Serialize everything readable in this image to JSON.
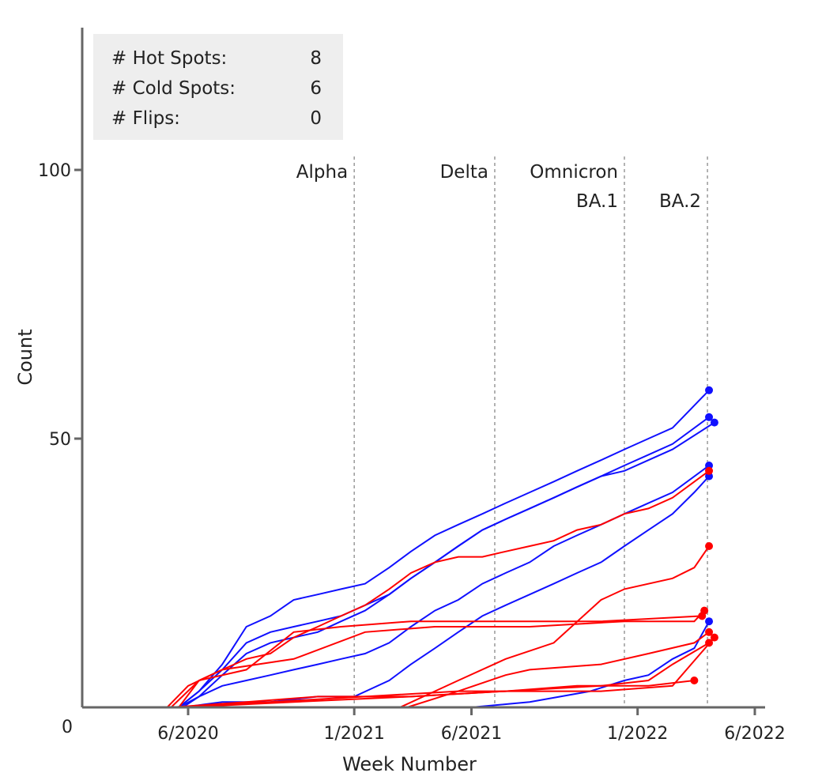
{
  "stats": [
    {
      "label": "# Hot Spots:",
      "value": "8"
    },
    {
      "label": "# Cold Spots:",
      "value": "6"
    },
    {
      "label": "# Flips:",
      "value": "0"
    }
  ],
  "colors": {
    "hot": "#ff0000",
    "cold": "#1010ff",
    "axis": "#666666",
    "stats_bg": "#eeeeee",
    "era_line": "#999999"
  },
  "chart_data": {
    "type": "line",
    "xlabel": "Week Number",
    "ylabel": "Count",
    "xlim": [
      "2020-04-15",
      "2022-06-01"
    ],
    "ylim": [
      0,
      100
    ],
    "x_ticks": [
      {
        "x": "2020-06-01",
        "label": "6/2020"
      },
      {
        "x": "2021-01-01",
        "label": "1/2021"
      },
      {
        "x": "2021-06-01",
        "label": "6/2021"
      },
      {
        "x": "2022-01-01",
        "label": "1/2022"
      },
      {
        "x": "2022-06-01",
        "label": "6/2022"
      }
    ],
    "y_ticks": [
      {
        "y": 0,
        "label": "0"
      },
      {
        "y": 50,
        "label": "50"
      },
      {
        "y": 100,
        "label": "100"
      }
    ],
    "eras": [
      {
        "x": "2021-01-01",
        "label": "Alpha",
        "row": 0
      },
      {
        "x": "2021-07-01",
        "label": "Delta",
        "row": 0
      },
      {
        "x": "2021-12-15",
        "label": "Omnicron",
        "row": 0
      },
      {
        "x": "2021-12-15",
        "label": "BA.1",
        "row": 1
      },
      {
        "x": "2022-04-01",
        "label": "BA.2",
        "row": 1
      }
    ],
    "series": [
      {
        "group": "cold",
        "points": [
          [
            "2020-05-20",
            0
          ],
          [
            "2020-06-15",
            3
          ],
          [
            "2020-07-15",
            8
          ],
          [
            "2020-08-15",
            15
          ],
          [
            "2020-09-15",
            17
          ],
          [
            "2020-10-15",
            20
          ],
          [
            "2020-11-15",
            21
          ],
          [
            "2020-12-15",
            22
          ],
          [
            "2021-01-15",
            23
          ],
          [
            "2021-02-15",
            26
          ],
          [
            "2021-03-15",
            29
          ],
          [
            "2021-04-15",
            32
          ],
          [
            "2021-05-15",
            34
          ],
          [
            "2021-06-15",
            36
          ],
          [
            "2021-07-15",
            38
          ],
          [
            "2021-08-15",
            40
          ],
          [
            "2021-09-15",
            42
          ],
          [
            "2021-10-15",
            44
          ],
          [
            "2021-11-15",
            46
          ],
          [
            "2021-12-15",
            48
          ],
          [
            "2022-01-15",
            50
          ],
          [
            "2022-02-15",
            52
          ],
          [
            "2022-04-03",
            59
          ]
        ]
      },
      {
        "group": "cold",
        "points": [
          [
            "2020-05-20",
            0
          ],
          [
            "2020-06-15",
            3
          ],
          [
            "2020-07-15",
            7
          ],
          [
            "2020-08-15",
            12
          ],
          [
            "2020-09-15",
            14
          ],
          [
            "2020-10-15",
            15
          ],
          [
            "2020-11-15",
            16
          ],
          [
            "2020-12-15",
            17
          ],
          [
            "2021-01-15",
            19
          ],
          [
            "2021-02-15",
            21
          ],
          [
            "2021-03-15",
            24
          ],
          [
            "2021-04-15",
            27
          ],
          [
            "2021-05-15",
            30
          ],
          [
            "2021-06-15",
            33
          ],
          [
            "2021-07-15",
            35
          ],
          [
            "2021-08-15",
            37
          ],
          [
            "2021-09-15",
            39
          ],
          [
            "2021-10-15",
            41
          ],
          [
            "2021-11-15",
            43
          ],
          [
            "2021-12-15",
            45
          ],
          [
            "2022-01-15",
            47
          ],
          [
            "2022-02-15",
            49
          ],
          [
            "2022-04-03",
            54
          ]
        ]
      },
      {
        "group": "cold",
        "points": [
          [
            "2020-05-25",
            0
          ],
          [
            "2020-06-15",
            2
          ],
          [
            "2020-07-15",
            6
          ],
          [
            "2020-08-15",
            10
          ],
          [
            "2020-09-15",
            12
          ],
          [
            "2020-10-15",
            13
          ],
          [
            "2020-11-15",
            14
          ],
          [
            "2020-12-15",
            16
          ],
          [
            "2021-01-15",
            18
          ],
          [
            "2021-02-15",
            21
          ],
          [
            "2021-03-15",
            24
          ],
          [
            "2021-04-15",
            27
          ],
          [
            "2021-05-15",
            30
          ],
          [
            "2021-06-15",
            33
          ],
          [
            "2021-07-15",
            35
          ],
          [
            "2021-08-15",
            37
          ],
          [
            "2021-09-15",
            39
          ],
          [
            "2021-10-15",
            41
          ],
          [
            "2021-11-15",
            43
          ],
          [
            "2021-12-15",
            44
          ],
          [
            "2022-01-15",
            46
          ],
          [
            "2022-02-15",
            48
          ],
          [
            "2022-04-10",
            53
          ]
        ]
      },
      {
        "group": "cold",
        "points": [
          [
            "2020-05-20",
            0
          ],
          [
            "2020-06-15",
            2
          ],
          [
            "2020-07-15",
            4
          ],
          [
            "2020-08-15",
            5
          ],
          [
            "2020-09-15",
            6
          ],
          [
            "2020-10-15",
            7
          ],
          [
            "2020-11-15",
            8
          ],
          [
            "2020-12-15",
            9
          ],
          [
            "2021-01-15",
            10
          ],
          [
            "2021-02-15",
            12
          ],
          [
            "2021-03-15",
            15
          ],
          [
            "2021-04-15",
            18
          ],
          [
            "2021-05-15",
            20
          ],
          [
            "2021-06-15",
            23
          ],
          [
            "2021-07-15",
            25
          ],
          [
            "2021-08-15",
            27
          ],
          [
            "2021-09-15",
            30
          ],
          [
            "2021-10-15",
            32
          ],
          [
            "2021-11-15",
            34
          ],
          [
            "2021-12-15",
            36
          ],
          [
            "2022-01-15",
            38
          ],
          [
            "2022-02-15",
            40
          ],
          [
            "2022-04-03",
            45
          ]
        ]
      },
      {
        "group": "cold",
        "points": [
          [
            "2020-05-25",
            0
          ],
          [
            "2020-07-15",
            1
          ],
          [
            "2020-09-15",
            1
          ],
          [
            "2020-11-15",
            2
          ],
          [
            "2021-01-01",
            2
          ],
          [
            "2021-02-15",
            5
          ],
          [
            "2021-03-15",
            8
          ],
          [
            "2021-04-15",
            11
          ],
          [
            "2021-05-15",
            14
          ],
          [
            "2021-06-15",
            17
          ],
          [
            "2021-07-15",
            19
          ],
          [
            "2021-08-15",
            21
          ],
          [
            "2021-09-15",
            23
          ],
          [
            "2021-10-15",
            25
          ],
          [
            "2021-11-15",
            27
          ],
          [
            "2021-12-15",
            30
          ],
          [
            "2022-01-15",
            33
          ],
          [
            "2022-02-15",
            36
          ],
          [
            "2022-03-15",
            40
          ],
          [
            "2022-04-03",
            43
          ]
        ]
      },
      {
        "group": "cold",
        "points": [
          [
            "2021-06-01",
            0
          ],
          [
            "2021-08-15",
            1
          ],
          [
            "2021-11-01",
            3
          ],
          [
            "2021-12-15",
            5
          ],
          [
            "2022-01-15",
            6
          ],
          [
            "2022-02-15",
            9
          ],
          [
            "2022-03-15",
            11
          ],
          [
            "2022-04-03",
            16
          ]
        ]
      },
      {
        "group": "hot",
        "points": [
          [
            "2020-05-05",
            0
          ],
          [
            "2020-06-01",
            4
          ],
          [
            "2020-07-15",
            7
          ],
          [
            "2020-08-15",
            9
          ],
          [
            "2020-09-15",
            10
          ],
          [
            "2020-10-15",
            13
          ],
          [
            "2020-11-15",
            15
          ],
          [
            "2020-12-15",
            17
          ],
          [
            "2021-01-15",
            19
          ],
          [
            "2021-02-15",
            22
          ],
          [
            "2021-03-15",
            25
          ],
          [
            "2021-04-15",
            27
          ],
          [
            "2021-05-15",
            28
          ],
          [
            "2021-06-15",
            28
          ],
          [
            "2021-07-15",
            29
          ],
          [
            "2021-08-15",
            30
          ],
          [
            "2021-09-15",
            31
          ],
          [
            "2021-10-15",
            33
          ],
          [
            "2021-11-15",
            34
          ],
          [
            "2021-12-15",
            36
          ],
          [
            "2022-01-15",
            37
          ],
          [
            "2022-02-15",
            39
          ],
          [
            "2022-04-03",
            44
          ]
        ]
      },
      {
        "group": "hot",
        "points": [
          [
            "2020-05-10",
            0
          ],
          [
            "2020-06-15",
            5
          ],
          [
            "2020-08-15",
            7
          ],
          [
            "2020-10-15",
            14
          ],
          [
            "2020-12-15",
            15
          ],
          [
            "2021-03-15",
            16
          ],
          [
            "2021-07-15",
            16
          ],
          [
            "2021-11-15",
            16
          ],
          [
            "2022-03-25",
            17
          ]
        ]
      },
      {
        "group": "hot",
        "points": [
          [
            "2020-05-20",
            0
          ],
          [
            "2020-06-15",
            5
          ],
          [
            "2020-07-15",
            7
          ],
          [
            "2020-10-15",
            9
          ],
          [
            "2021-01-15",
            14
          ],
          [
            "2021-04-15",
            15
          ],
          [
            "2021-08-15",
            15
          ],
          [
            "2021-12-15",
            16
          ],
          [
            "2022-03-15",
            16
          ],
          [
            "2022-03-28",
            18
          ]
        ]
      },
      {
        "group": "hot",
        "points": [
          [
            "2021-03-01",
            0
          ],
          [
            "2021-05-15",
            5
          ],
          [
            "2021-07-15",
            9
          ],
          [
            "2021-09-15",
            12
          ],
          [
            "2021-11-15",
            20
          ],
          [
            "2021-12-15",
            22
          ],
          [
            "2022-02-15",
            24
          ],
          [
            "2022-03-15",
            26
          ],
          [
            "2022-04-03",
            30
          ]
        ]
      },
      {
        "group": "hot",
        "points": [
          [
            "2021-03-10",
            0
          ],
          [
            "2021-05-15",
            3
          ],
          [
            "2021-07-15",
            6
          ],
          [
            "2021-08-15",
            7
          ],
          [
            "2021-11-15",
            8
          ],
          [
            "2022-01-15",
            10
          ],
          [
            "2022-03-15",
            12
          ],
          [
            "2022-04-03",
            14
          ]
        ]
      },
      {
        "group": "hot",
        "points": [
          [
            "2020-05-10",
            0
          ],
          [
            "2020-08-15",
            1
          ],
          [
            "2020-11-15",
            2
          ],
          [
            "2021-03-15",
            2
          ],
          [
            "2021-07-15",
            3
          ],
          [
            "2021-11-15",
            4
          ],
          [
            "2022-01-15",
            5
          ],
          [
            "2022-02-15",
            8
          ],
          [
            "2022-04-03",
            12
          ]
        ]
      },
      {
        "group": "hot",
        "points": [
          [
            "2020-05-20",
            0
          ],
          [
            "2020-09-15",
            1
          ],
          [
            "2021-01-15",
            2
          ],
          [
            "2021-05-15",
            3
          ],
          [
            "2021-09-15",
            3
          ],
          [
            "2021-11-15",
            3
          ],
          [
            "2022-02-15",
            4
          ],
          [
            "2022-04-10",
            13
          ]
        ]
      },
      {
        "group": "hot",
        "points": [
          [
            "2020-05-25",
            0
          ],
          [
            "2020-10-15",
            1
          ],
          [
            "2021-03-15",
            2
          ],
          [
            "2021-07-15",
            3
          ],
          [
            "2021-10-15",
            4
          ],
          [
            "2022-01-15",
            4
          ],
          [
            "2022-03-15",
            5
          ]
        ]
      }
    ]
  }
}
